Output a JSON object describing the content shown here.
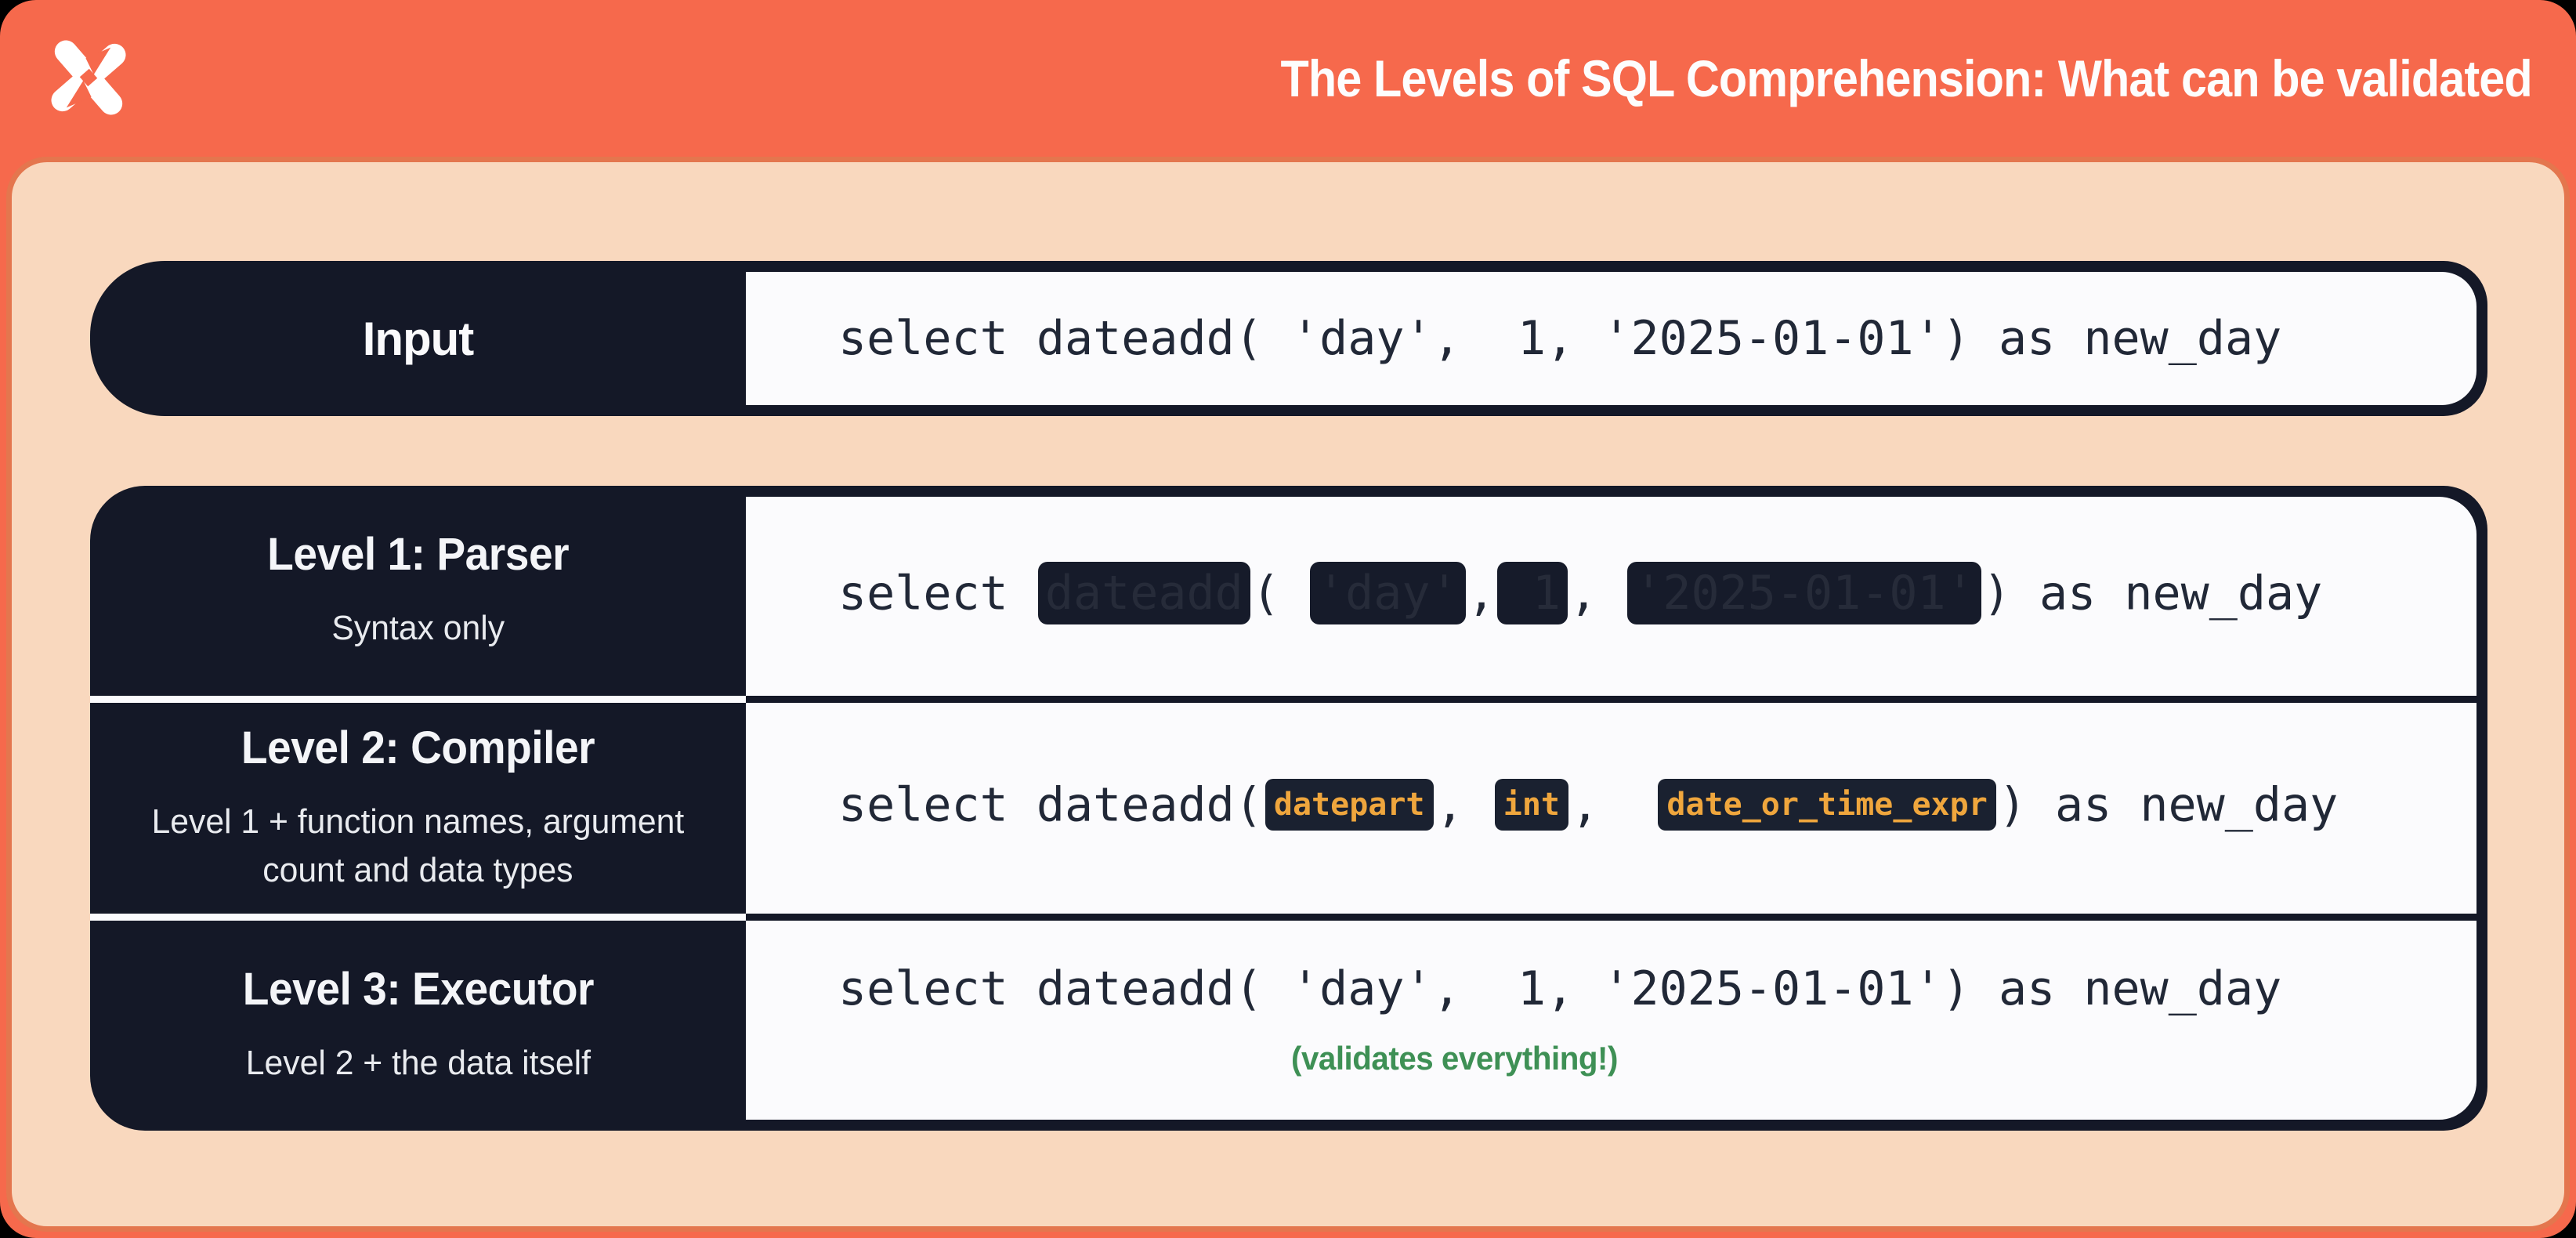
{
  "page_title": "The Levels of SQL Comprehension: What can be validated",
  "logo": "x-shuriken-logo",
  "colors": {
    "header_orange": "#F6694C",
    "panel_peach": "#F9D8BE",
    "dark_navy": "#141827",
    "card_white": "#FBFBFD",
    "badge_amber": "#EFA63D",
    "note_green": "#3E9055"
  },
  "input_row": {
    "label": "Input",
    "code": "select dateadd( 'day',  1, '2025-01-01') as new_day"
  },
  "levels": [
    {
      "title": "Level 1: Parser",
      "subtitle": "Syntax only",
      "code_segments": [
        {
          "t": "text",
          "v": "select "
        },
        {
          "t": "redacted",
          "v": "dateadd"
        },
        {
          "t": "text",
          "v": "( "
        },
        {
          "t": "redacted",
          "v": "'day'"
        },
        {
          "t": "text",
          "v": ","
        },
        {
          "t": "redacted",
          "v": " 1"
        },
        {
          "t": "text",
          "v": ", "
        },
        {
          "t": "redacted",
          "v": "'2025-01-01'"
        },
        {
          "t": "text",
          "v": ") as new_day"
        }
      ]
    },
    {
      "title": "Level 2: Compiler",
      "subtitle": "Level 1 + function names, argument\ncount and data types",
      "code_segments": [
        {
          "t": "text",
          "v": "select dateadd("
        },
        {
          "t": "badge",
          "v": "datepart"
        },
        {
          "t": "text",
          "v": ", "
        },
        {
          "t": "badge",
          "v": "int"
        },
        {
          "t": "text",
          "v": ",  "
        },
        {
          "t": "badge",
          "v": "date_or_time_expr"
        },
        {
          "t": "text",
          "v": ") as new_day"
        }
      ]
    },
    {
      "title": "Level 3: Executor",
      "subtitle": "Level 2 + the data itself",
      "code": "select dateadd( 'day',  1, '2025-01-01') as new_day",
      "note": "(validates everything!)"
    }
  ]
}
